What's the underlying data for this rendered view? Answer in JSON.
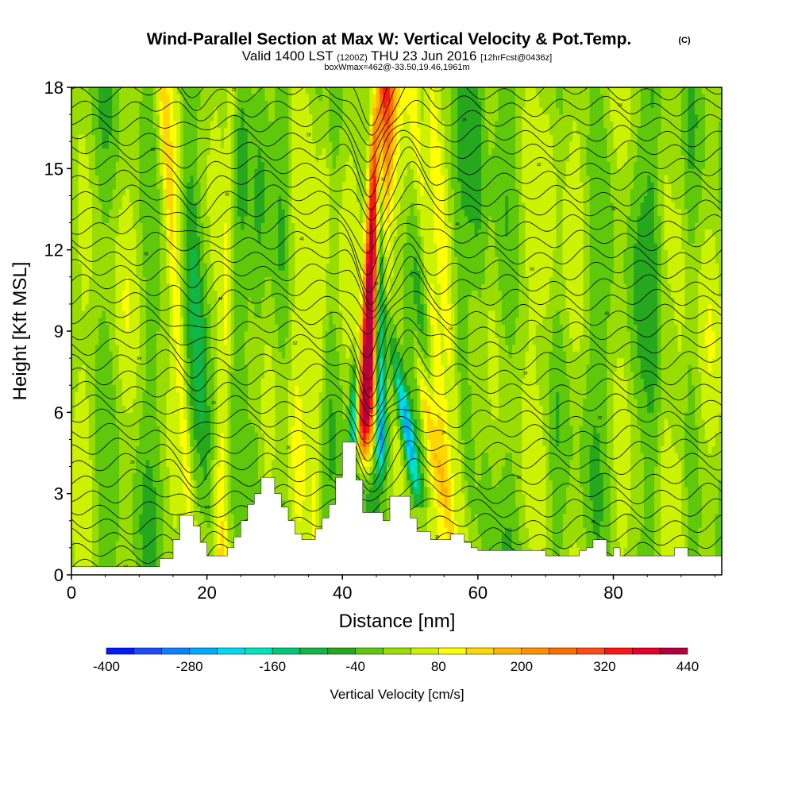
{
  "header": {
    "title": "Wind-Parallel Section at Max W: Vertical Velocity & Pot.Temp.",
    "copyright": "(C)",
    "valid_prefix": "Valid 1400 LST",
    "valid_utc": "(1200Z)",
    "valid_date": "THU 23 Jun 2016",
    "forecast": "[12hrFcst@0436z]",
    "box_info": "boxWmax=462@-33.50,19.46,1961m"
  },
  "chart_data": {
    "type": "heatmap",
    "xlabel": "Distance [nm]",
    "ylabel": "Height [Kft MSL]",
    "xlim": [
      0,
      96
    ],
    "ylim": [
      0,
      18
    ],
    "xticks": [
      "0",
      "20",
      "40",
      "60",
      "80"
    ],
    "yticks": [
      "0",
      "3",
      "6",
      "9",
      "12",
      "15",
      "18"
    ],
    "colorbar": {
      "label": "Vertical Velocity [cm/s]",
      "ticks": [
        "-400",
        "-280",
        "-160",
        "-40",
        "80",
        "200",
        "320",
        "440"
      ],
      "levels": [
        -400,
        -360,
        -320,
        -280,
        -240,
        -200,
        -160,
        -120,
        -80,
        -40,
        0,
        40,
        80,
        120,
        160,
        200,
        240,
        280,
        320,
        360,
        400,
        440
      ],
      "colors": [
        "#0019ff",
        "#1f4bff",
        "#0a82ff",
        "#00aaff",
        "#00d9f2",
        "#00e3c0",
        "#00c878",
        "#10b646",
        "#26a81e",
        "#5fc80a",
        "#99dd00",
        "#ccf200",
        "#ffff00",
        "#ffd700",
        "#ffb400",
        "#ff9100",
        "#ff6e00",
        "#ff4b14",
        "#ff1414",
        "#e60028",
        "#b4003c"
      ]
    },
    "terrain": {
      "x": [
        0,
        13,
        13,
        15,
        15,
        16,
        16,
        18,
        18,
        19,
        19,
        20,
        20,
        23,
        23,
        24,
        24,
        25,
        25,
        26,
        26,
        27,
        27,
        28,
        28,
        30,
        30,
        31,
        31,
        32,
        32,
        33,
        33,
        34,
        34,
        36,
        36,
        37,
        37,
        38,
        38,
        39,
        39,
        40,
        40,
        42,
        42,
        43,
        43,
        46,
        46,
        47,
        47,
        50,
        50,
        51,
        51,
        53,
        53,
        56,
        56,
        58,
        58,
        59,
        59,
        60,
        60,
        62,
        62,
        63,
        63,
        66,
        66,
        70,
        70,
        72,
        72,
        75,
        75,
        76,
        76,
        77,
        77,
        79,
        79,
        80,
        80,
        81,
        81,
        82,
        82,
        89,
        89,
        91,
        91,
        96
      ],
      "height": [
        0.3,
        0.3,
        0.6,
        0.6,
        1.3,
        1.3,
        2.2,
        2.2,
        1.8,
        1.8,
        1.2,
        1.2,
        0.7,
        0.7,
        1.0,
        1.0,
        1.4,
        1.4,
        2.0,
        2.0,
        2.6,
        2.6,
        3.0,
        3.0,
        3.6,
        3.6,
        3.0,
        3.0,
        2.5,
        2.5,
        2.0,
        2.0,
        1.5,
        1.5,
        1.3,
        1.3,
        1.7,
        1.7,
        2.1,
        2.1,
        2.6,
        2.6,
        3.6,
        3.6,
        4.9,
        4.9,
        3.5,
        3.5,
        2.3,
        2.3,
        2.0,
        2.0,
        2.9,
        2.9,
        2.1,
        2.1,
        1.6,
        1.6,
        1.3,
        1.3,
        1.5,
        1.5,
        1.2,
        1.2,
        1.0,
        1.0,
        0.9,
        0.9,
        0.9,
        0.9,
        0.9,
        0.9,
        0.9,
        0.9,
        0.7,
        0.7,
        0.7,
        0.7,
        0.9,
        0.9,
        1.0,
        1.0,
        1.3,
        1.3,
        0.7,
        0.7,
        1.0,
        1.0,
        0.7,
        0.7,
        0.7,
        0.7,
        1.0,
        1.0,
        0.7,
        0.7
      ]
    },
    "contour_labels": [
      "40",
      "46",
      "38",
      "36",
      "34",
      "32",
      "30",
      "28",
      "26",
      "24",
      "22",
      "20",
      "18",
      "16",
      "54",
      "52",
      "50",
      "48",
      "44",
      "42",
      "56",
      "58"
    ]
  }
}
